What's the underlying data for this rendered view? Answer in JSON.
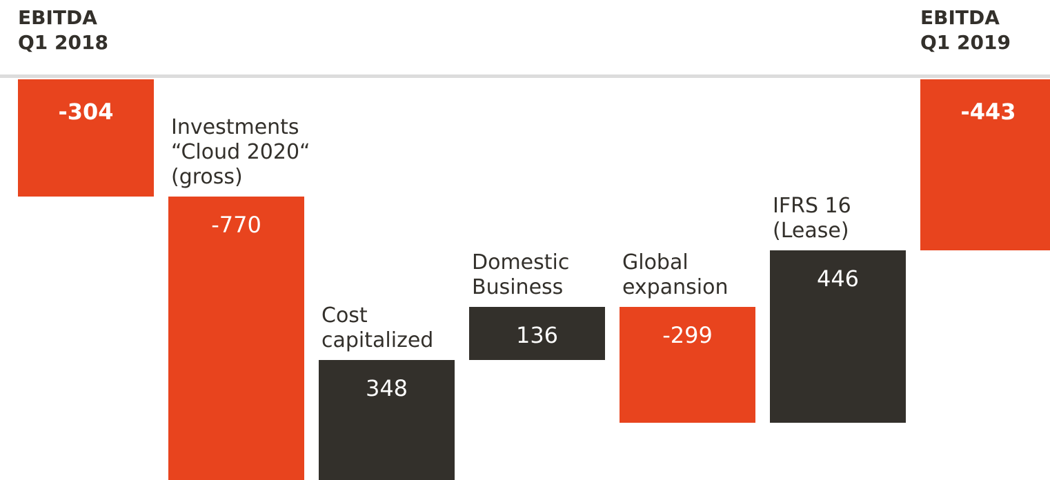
{
  "chart_data": {
    "type": "waterfall",
    "categories": [
      "EBITDA\nQ1 2018",
      "Investments\n“Cloud 2020“\n(gross)",
      "Cost\ncapitalized",
      "Domestic\nBusiness",
      "Global\nexpansion",
      "IFRS 16\n(Lease)",
      "EBITDA\nQ1 2019"
    ],
    "values": [
      -304,
      -770,
      348,
      136,
      -299,
      446,
      -443
    ],
    "measure": [
      "total",
      "relative",
      "relative",
      "relative",
      "relative",
      "relative",
      "total"
    ],
    "negative_color": "#e8441e",
    "positive_color": "#33302b"
  }
}
